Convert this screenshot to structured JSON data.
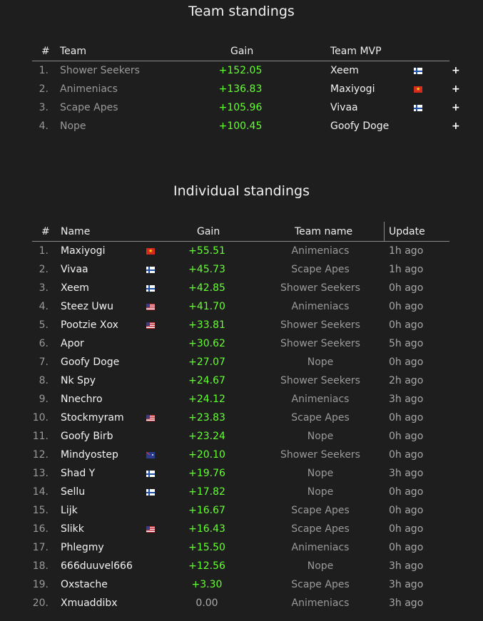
{
  "team_standings": {
    "title": "Team standings",
    "headers": {
      "rank": "#",
      "team": "Team",
      "gain": "Gain",
      "mvp": "Team MVP"
    },
    "rows": [
      {
        "rank": "1.",
        "team": "Shower Seekers",
        "gain": "+152.05",
        "mvp": "Xeem",
        "flag": "fi",
        "action": "+"
      },
      {
        "rank": "2.",
        "team": "Animeniacs",
        "gain": "+136.83",
        "mvp": "Maxiyogi",
        "flag": "vn",
        "action": "+"
      },
      {
        "rank": "3.",
        "team": "Scape Apes",
        "gain": "+105.96",
        "mvp": "Vivaa",
        "flag": "fi",
        "action": "+"
      },
      {
        "rank": "4.",
        "team": "Nope",
        "gain": "+100.45",
        "mvp": "Goofy Doge",
        "flag": "",
        "action": "+"
      }
    ]
  },
  "individual_standings": {
    "title": "Individual standings",
    "headers": {
      "rank": "#",
      "name": "Name",
      "gain": "Gain",
      "team": "Team name",
      "update": "Update"
    },
    "rows": [
      {
        "rank": "1.",
        "name": "Maxiyogi",
        "flag": "vn",
        "gain": "+55.51",
        "team": "Animeniacs",
        "update": "1h ago"
      },
      {
        "rank": "2.",
        "name": "Vivaa",
        "flag": "fi",
        "gain": "+45.73",
        "team": "Scape Apes",
        "update": "1h ago"
      },
      {
        "rank": "3.",
        "name": "Xeem",
        "flag": "fi",
        "gain": "+42.85",
        "team": "Shower Seekers",
        "update": "0h ago"
      },
      {
        "rank": "4.",
        "name": "Steez Uwu",
        "flag": "us",
        "gain": "+41.70",
        "team": "Animeniacs",
        "update": "0h ago"
      },
      {
        "rank": "5.",
        "name": "Pootzie Xox",
        "flag": "us",
        "gain": "+33.81",
        "team": "Shower Seekers",
        "update": "0h ago"
      },
      {
        "rank": "6.",
        "name": "Apor",
        "flag": "",
        "gain": "+30.62",
        "team": "Shower Seekers",
        "update": "5h ago"
      },
      {
        "rank": "7.",
        "name": "Goofy Doge",
        "flag": "",
        "gain": "+27.07",
        "team": "Nope",
        "update": "0h ago"
      },
      {
        "rank": "8.",
        "name": "Nk Spy",
        "flag": "",
        "gain": "+24.67",
        "team": "Shower Seekers",
        "update": "2h ago"
      },
      {
        "rank": "9.",
        "name": "Nnechro",
        "flag": "",
        "gain": "+24.12",
        "team": "Animeniacs",
        "update": "3h ago"
      },
      {
        "rank": "10.",
        "name": "Stockmyram",
        "flag": "us",
        "gain": "+23.83",
        "team": "Scape Apes",
        "update": "0h ago"
      },
      {
        "rank": "11.",
        "name": "Goofy Birb",
        "flag": "",
        "gain": "+23.24",
        "team": "Nope",
        "update": "0h ago"
      },
      {
        "rank": "12.",
        "name": "Mindyostep",
        "flag": "au",
        "gain": "+20.10",
        "team": "Shower Seekers",
        "update": "0h ago"
      },
      {
        "rank": "13.",
        "name": "Shad Y",
        "flag": "fi",
        "gain": "+19.76",
        "team": "Nope",
        "update": "3h ago"
      },
      {
        "rank": "14.",
        "name": "Sellu",
        "flag": "fi",
        "gain": "+17.82",
        "team": "Nope",
        "update": "0h ago"
      },
      {
        "rank": "15.",
        "name": "Lijk",
        "flag": "",
        "gain": "+16.67",
        "team": "Scape Apes",
        "update": "0h ago"
      },
      {
        "rank": "16.",
        "name": "Slikk",
        "flag": "us",
        "gain": "+16.43",
        "team": "Scape Apes",
        "update": "0h ago"
      },
      {
        "rank": "17.",
        "name": "Phlegmy",
        "flag": "",
        "gain": "+15.50",
        "team": "Animeniacs",
        "update": "0h ago"
      },
      {
        "rank": "18.",
        "name": "666duuvel666",
        "flag": "",
        "gain": "+12.56",
        "team": "Nope",
        "update": "3h ago"
      },
      {
        "rank": "19.",
        "name": "Oxstache",
        "flag": "",
        "gain": "+3.30",
        "team": "Scape Apes",
        "update": "3h ago"
      },
      {
        "rank": "20.",
        "name": "Xmuaddibx",
        "flag": "",
        "gain": "0.00",
        "team": "Animeniacs",
        "update": "3h ago"
      }
    ]
  }
}
